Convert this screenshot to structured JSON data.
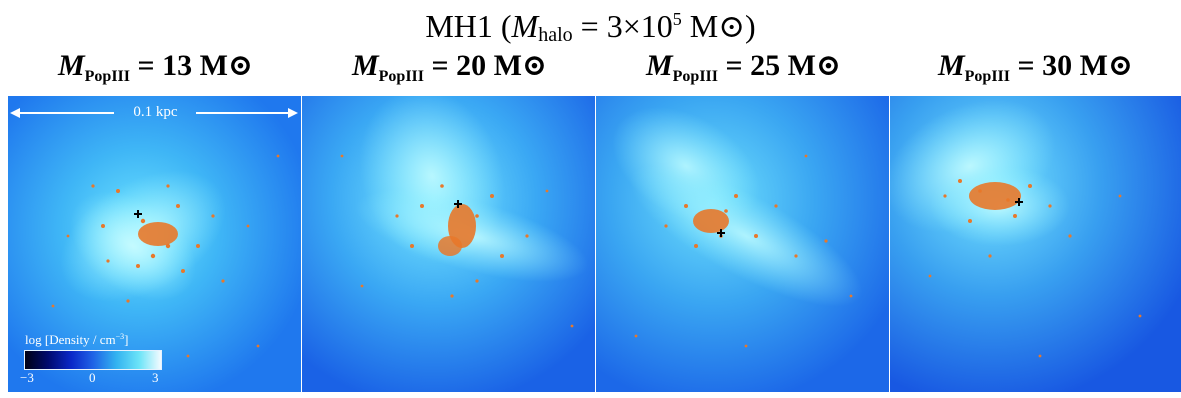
{
  "header": {
    "title_prefix": "MH1 (",
    "title_mhalo_symbol": "M",
    "title_mhalo_sub": "halo",
    "title_mhalo_value": " = 3×10",
    "title_mhalo_exponent": "5",
    "title_suffix": " M⊙)"
  },
  "panels": [
    {
      "symbol": "M",
      "sub": "PopIII",
      "value": " = 13 M⊙"
    },
    {
      "symbol": "M",
      "sub": "PopIII",
      "value": " = 20 M⊙"
    },
    {
      "symbol": "M",
      "sub": "PopIII",
      "value": " = 25 M⊙"
    },
    {
      "symbol": "M",
      "sub": "PopIII",
      "value": " = 30 M⊙"
    }
  ],
  "scalebar": {
    "label": "0.1 kpc"
  },
  "colorbar": {
    "title": "log [Density / cm",
    "title_exponent": "−3",
    "title_close": "]",
    "ticks": [
      "−3",
      "0",
      "3"
    ]
  },
  "colors": {
    "background_gas": "#1e74f0",
    "dense_gas": "#8af0ff",
    "particles": "#e8782a",
    "marker": "#000000"
  }
}
